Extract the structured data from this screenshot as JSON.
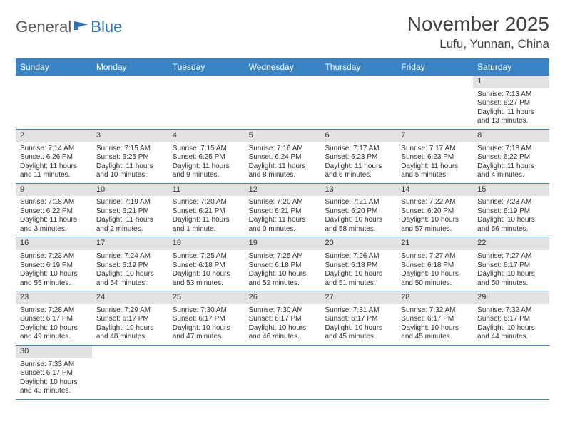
{
  "logo": {
    "part1": "General",
    "part2": "Blue"
  },
  "title": "November 2025",
  "location": "Lufu, Yunnan, China",
  "header_color": "#3b84c4",
  "divider_color": "#3b84c4",
  "daybar_color": "#e2e2e2",
  "text_color": "#303030",
  "weekdays": [
    "Sunday",
    "Monday",
    "Tuesday",
    "Wednesday",
    "Thursday",
    "Friday",
    "Saturday"
  ],
  "first_weekday_index": 6,
  "days": [
    {
      "n": 1,
      "sunrise": "7:13 AM",
      "sunset": "6:27 PM",
      "daylight": "11 hours and 13 minutes."
    },
    {
      "n": 2,
      "sunrise": "7:14 AM",
      "sunset": "6:26 PM",
      "daylight": "11 hours and 11 minutes."
    },
    {
      "n": 3,
      "sunrise": "7:15 AM",
      "sunset": "6:25 PM",
      "daylight": "11 hours and 10 minutes."
    },
    {
      "n": 4,
      "sunrise": "7:15 AM",
      "sunset": "6:25 PM",
      "daylight": "11 hours and 9 minutes."
    },
    {
      "n": 5,
      "sunrise": "7:16 AM",
      "sunset": "6:24 PM",
      "daylight": "11 hours and 8 minutes."
    },
    {
      "n": 6,
      "sunrise": "7:17 AM",
      "sunset": "6:23 PM",
      "daylight": "11 hours and 6 minutes."
    },
    {
      "n": 7,
      "sunrise": "7:17 AM",
      "sunset": "6:23 PM",
      "daylight": "11 hours and 5 minutes."
    },
    {
      "n": 8,
      "sunrise": "7:18 AM",
      "sunset": "6:22 PM",
      "daylight": "11 hours and 4 minutes."
    },
    {
      "n": 9,
      "sunrise": "7:18 AM",
      "sunset": "6:22 PM",
      "daylight": "11 hours and 3 minutes."
    },
    {
      "n": 10,
      "sunrise": "7:19 AM",
      "sunset": "6:21 PM",
      "daylight": "11 hours and 2 minutes."
    },
    {
      "n": 11,
      "sunrise": "7:20 AM",
      "sunset": "6:21 PM",
      "daylight": "11 hours and 1 minute."
    },
    {
      "n": 12,
      "sunrise": "7:20 AM",
      "sunset": "6:21 PM",
      "daylight": "11 hours and 0 minutes."
    },
    {
      "n": 13,
      "sunrise": "7:21 AM",
      "sunset": "6:20 PM",
      "daylight": "10 hours and 58 minutes."
    },
    {
      "n": 14,
      "sunrise": "7:22 AM",
      "sunset": "6:20 PM",
      "daylight": "10 hours and 57 minutes."
    },
    {
      "n": 15,
      "sunrise": "7:23 AM",
      "sunset": "6:19 PM",
      "daylight": "10 hours and 56 minutes."
    },
    {
      "n": 16,
      "sunrise": "7:23 AM",
      "sunset": "6:19 PM",
      "daylight": "10 hours and 55 minutes."
    },
    {
      "n": 17,
      "sunrise": "7:24 AM",
      "sunset": "6:19 PM",
      "daylight": "10 hours and 54 minutes."
    },
    {
      "n": 18,
      "sunrise": "7:25 AM",
      "sunset": "6:18 PM",
      "daylight": "10 hours and 53 minutes."
    },
    {
      "n": 19,
      "sunrise": "7:25 AM",
      "sunset": "6:18 PM",
      "daylight": "10 hours and 52 minutes."
    },
    {
      "n": 20,
      "sunrise": "7:26 AM",
      "sunset": "6:18 PM",
      "daylight": "10 hours and 51 minutes."
    },
    {
      "n": 21,
      "sunrise": "7:27 AM",
      "sunset": "6:18 PM",
      "daylight": "10 hours and 50 minutes."
    },
    {
      "n": 22,
      "sunrise": "7:27 AM",
      "sunset": "6:17 PM",
      "daylight": "10 hours and 50 minutes."
    },
    {
      "n": 23,
      "sunrise": "7:28 AM",
      "sunset": "6:17 PM",
      "daylight": "10 hours and 49 minutes."
    },
    {
      "n": 24,
      "sunrise": "7:29 AM",
      "sunset": "6:17 PM",
      "daylight": "10 hours and 48 minutes."
    },
    {
      "n": 25,
      "sunrise": "7:30 AM",
      "sunset": "6:17 PM",
      "daylight": "10 hours and 47 minutes."
    },
    {
      "n": 26,
      "sunrise": "7:30 AM",
      "sunset": "6:17 PM",
      "daylight": "10 hours and 46 minutes."
    },
    {
      "n": 27,
      "sunrise": "7:31 AM",
      "sunset": "6:17 PM",
      "daylight": "10 hours and 45 minutes."
    },
    {
      "n": 28,
      "sunrise": "7:32 AM",
      "sunset": "6:17 PM",
      "daylight": "10 hours and 45 minutes."
    },
    {
      "n": 29,
      "sunrise": "7:32 AM",
      "sunset": "6:17 PM",
      "daylight": "10 hours and 44 minutes."
    },
    {
      "n": 30,
      "sunrise": "7:33 AM",
      "sunset": "6:17 PM",
      "daylight": "10 hours and 43 minutes."
    }
  ],
  "labels": {
    "sunrise": "Sunrise:",
    "sunset": "Sunset:",
    "daylight": "Daylight:"
  }
}
